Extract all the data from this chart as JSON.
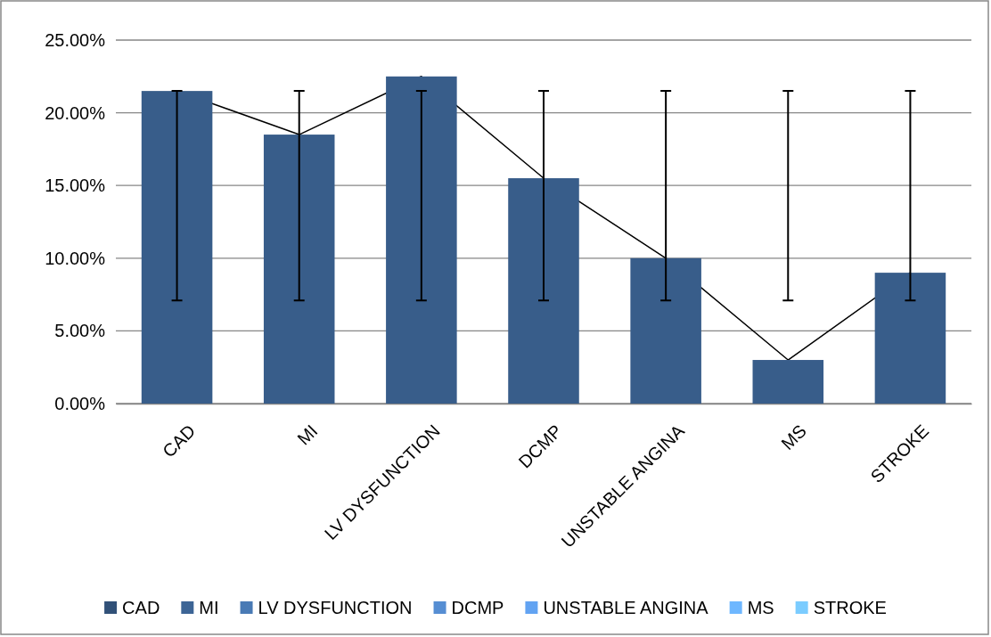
{
  "chart_data": {
    "type": "bar",
    "categories": [
      "CAD",
      "MI",
      "LV DYSFUNCTION",
      "DCMP",
      "UNSTABLE ANGINA",
      "MS",
      "STROKE"
    ],
    "series": [
      {
        "color": "#385d8a",
        "values": [
          21.5,
          18.5,
          22.5,
          15.5,
          10,
          3,
          9
        ],
        "errors": [
          [
            7.1,
            21.5
          ],
          [
            7.1,
            21.5
          ],
          [
            7.1,
            21.5
          ],
          [
            7.1,
            21.5
          ],
          [
            7.1,
            21.5
          ],
          [
            7.1,
            21.5
          ],
          [
            7.1,
            21.5
          ]
        ]
      },
      {
        "type": "line",
        "color": "#000000",
        "values": [
          21.5,
          18.5,
          22.5,
          15.5,
          10,
          3,
          9
        ]
      }
    ],
    "ylim": [
      0,
      25
    ],
    "yticks": [
      {
        "value": 0,
        "label": "0.00%"
      },
      {
        "value": 5,
        "label": "5.00%"
      },
      {
        "value": 10,
        "label": "10.00%"
      },
      {
        "value": 15,
        "label": "15.00%"
      },
      {
        "value": 20,
        "label": "20.00%"
      },
      {
        "value": 25,
        "label": "25.00%"
      }
    ],
    "grid": "y",
    "marker": "none"
  }
}
